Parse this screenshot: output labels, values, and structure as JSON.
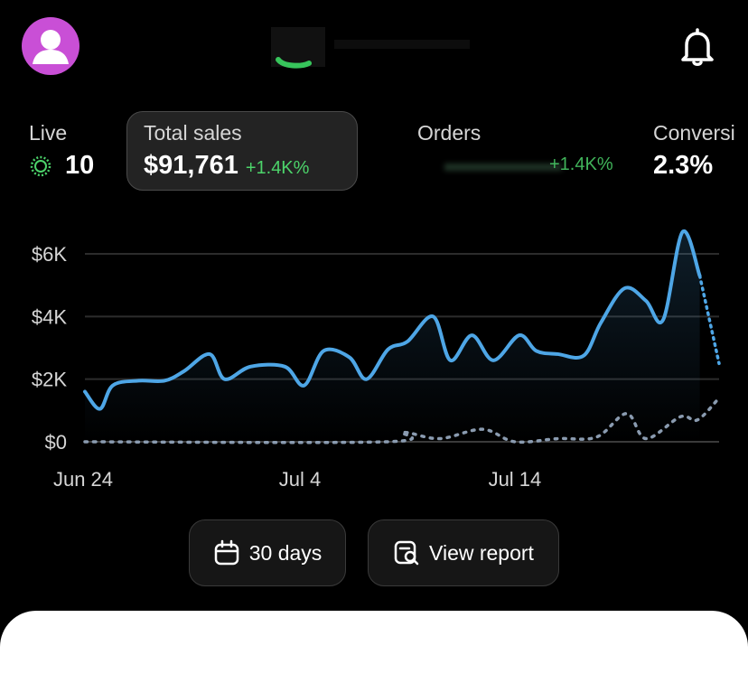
{
  "header": {
    "avatar_icon": "person-icon",
    "bell_icon": "bell-icon"
  },
  "metrics": {
    "live": {
      "label": "Live",
      "value": "10"
    },
    "total_sales": {
      "label": "Total sales",
      "value": "$91,761",
      "delta": "+1.4K%"
    },
    "orders": {
      "label": "Orders",
      "delta": "+1.4K%"
    },
    "conversion": {
      "label": "Conversi",
      "value": "2.3%"
    }
  },
  "colors": {
    "accent_blue": "#4ea6e6",
    "positive_green": "#4cd36a",
    "avatar_purple": "#c94fd6"
  },
  "chart_data": {
    "type": "line",
    "y_ticks": [
      "$0",
      "$2K",
      "$4K",
      "$6K"
    ],
    "x_ticks": [
      "Jun 24",
      "Jul 4",
      "Jul 14"
    ],
    "ylim": [
      0,
      6000
    ],
    "grid": true,
    "series": [
      {
        "style": "solid-blue",
        "values": [
          {
            "x": 0.0,
            "y": 1600
          },
          {
            "x": 0.7,
            "y": 1050
          },
          {
            "x": 1.3,
            "y": 1800
          },
          {
            "x": 2.5,
            "y": 1950
          },
          {
            "x": 3.7,
            "y": 1950
          },
          {
            "x": 4.6,
            "y": 2250
          },
          {
            "x": 5.8,
            "y": 2800
          },
          {
            "x": 6.5,
            "y": 2000
          },
          {
            "x": 7.7,
            "y": 2400
          },
          {
            "x": 9.3,
            "y": 2400
          },
          {
            "x": 10.2,
            "y": 1800
          },
          {
            "x": 11.1,
            "y": 2900
          },
          {
            "x": 12.3,
            "y": 2700
          },
          {
            "x": 13.1,
            "y": 2000
          },
          {
            "x": 14.1,
            "y": 2950
          },
          {
            "x": 15.0,
            "y": 3200
          },
          {
            "x": 16.2,
            "y": 4000
          },
          {
            "x": 17.0,
            "y": 2600
          },
          {
            "x": 18.0,
            "y": 3400
          },
          {
            "x": 19.0,
            "y": 2600
          },
          {
            "x": 20.2,
            "y": 3400
          },
          {
            "x": 21.0,
            "y": 2900
          },
          {
            "x": 22.0,
            "y": 2800
          },
          {
            "x": 23.2,
            "y": 2750
          },
          {
            "x": 24.0,
            "y": 3800
          },
          {
            "x": 25.1,
            "y": 4900
          },
          {
            "x": 26.1,
            "y": 4500
          },
          {
            "x": 26.9,
            "y": 3900
          },
          {
            "x": 27.8,
            "y": 6700
          },
          {
            "x": 28.6,
            "y": 5300
          }
        ]
      },
      {
        "style": "dotted-blue-projection",
        "values": [
          {
            "x": 28.6,
            "y": 5300
          },
          {
            "x": 29.5,
            "y": 2500
          }
        ]
      },
      {
        "style": "dotted-gray-comparison",
        "values": [
          {
            "x": 0,
            "y": 0
          },
          {
            "x": 14,
            "y": 0
          },
          {
            "x": 14.8,
            "y": 300
          },
          {
            "x": 16.5,
            "y": 100
          },
          {
            "x": 18.5,
            "y": 400
          },
          {
            "x": 20,
            "y": 0
          },
          {
            "x": 22,
            "y": 100
          },
          {
            "x": 23.8,
            "y": 150
          },
          {
            "x": 25.2,
            "y": 900
          },
          {
            "x": 26.1,
            "y": 100
          },
          {
            "x": 27.7,
            "y": 800
          },
          {
            "x": 28.5,
            "y": 700
          },
          {
            "x": 29.5,
            "y": 1400
          }
        ]
      }
    ]
  },
  "actions": {
    "days": {
      "label": "30 days",
      "icon": "calendar-icon"
    },
    "report": {
      "label": "View report",
      "icon": "report-search-icon"
    }
  }
}
